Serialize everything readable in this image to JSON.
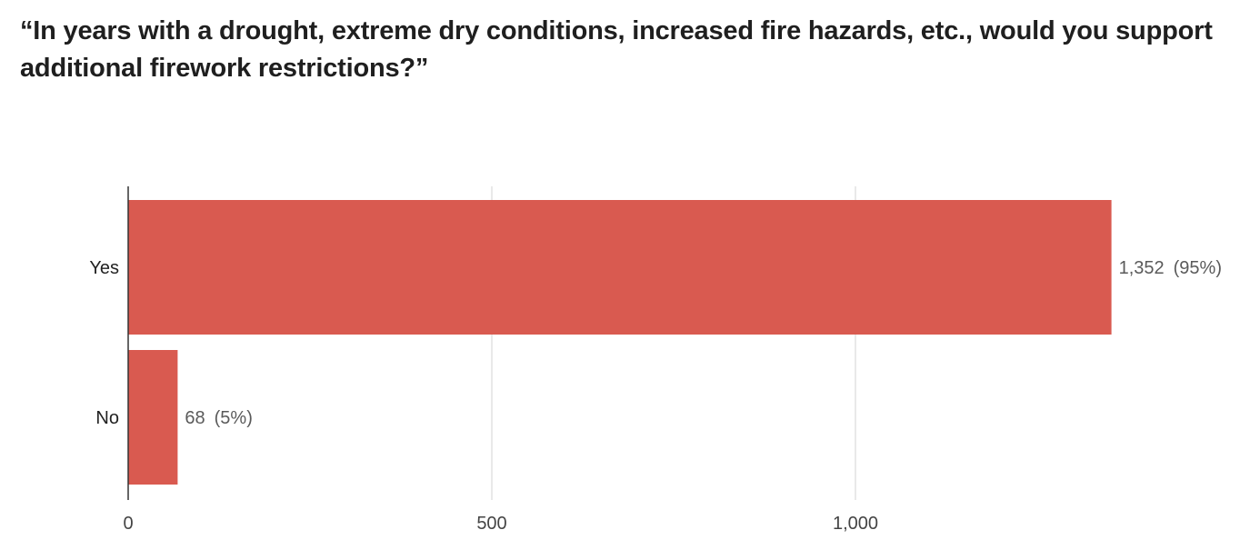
{
  "chart_data": {
    "type": "bar",
    "orientation": "horizontal",
    "title": "“In years with a drought, extreme dry conditions, increased fire hazards, etc., would you support additional firework restrictions?”",
    "categories": [
      "Yes",
      "No"
    ],
    "values": [
      1352,
      68
    ],
    "percent_labels": [
      "(95%)",
      "(5%)"
    ],
    "value_labels": [
      "1,352",
      "68"
    ],
    "xticks": [
      0,
      500,
      1000
    ],
    "xtick_labels": [
      "0",
      "500",
      "1,000"
    ],
    "xlim": [
      0,
      1400
    ],
    "grid": true,
    "bar_color": "#d95a50",
    "grid_color": "#e2e2e2"
  }
}
